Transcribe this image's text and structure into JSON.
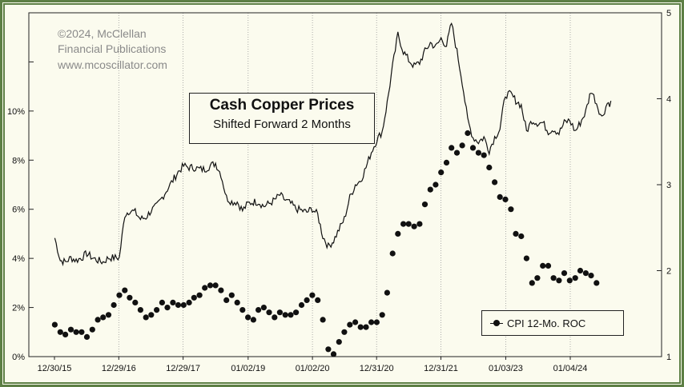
{
  "credit": [
    "©2024, McClellan",
    "Financial Publications",
    "www.mcoscillator.com"
  ],
  "chart_data": {
    "type": "line",
    "title": "Cash Copper Prices",
    "subtitle": "Shifted Forward 2 Months",
    "x_tick_labels": [
      "12/30/15",
      "12/29/16",
      "12/29/17",
      "01/02/19",
      "01/02/20",
      "12/31/20",
      "12/31/21",
      "01/03/23",
      "01/04/24"
    ],
    "x_range": [
      "2015-12-30",
      "2024-11-15"
    ],
    "y_left": {
      "ticks": [
        "0%",
        "2%",
        "4%",
        "6%",
        "8%",
        "10%"
      ],
      "range": [
        0,
        14
      ],
      "unit": "%"
    },
    "y_right": {
      "ticks": [
        "1",
        "2",
        "3",
        "4",
        "5"
      ],
      "range": [
        1,
        5
      ]
    },
    "grid": "vertical dotted at x ticks",
    "legend": {
      "position": "bottom-right",
      "entries": [
        "CPI 12-Mo. ROC"
      ]
    },
    "series": [
      {
        "name": "Cash Copper Prices",
        "axis": "right",
        "style": "thin-line",
        "x": [
          "2016-01-01",
          "2016-02-01",
          "2016-03-01",
          "2016-04-01",
          "2016-05-01",
          "2016-06-01",
          "2016-07-01",
          "2016-08-01",
          "2016-09-01",
          "2016-10-01",
          "2016-11-01",
          "2016-12-01",
          "2017-01-01",
          "2017-02-01",
          "2017-03-01",
          "2017-04-01",
          "2017-05-01",
          "2017-06-01",
          "2017-07-01",
          "2017-08-01",
          "2017-09-01",
          "2017-10-01",
          "2017-11-01",
          "2017-12-01",
          "2018-01-01",
          "2018-02-01",
          "2018-03-01",
          "2018-04-01",
          "2018-05-01",
          "2018-06-01",
          "2018-07-01",
          "2018-08-01",
          "2018-09-01",
          "2018-10-01",
          "2018-11-01",
          "2018-12-01",
          "2019-01-01",
          "2019-02-01",
          "2019-03-01",
          "2019-04-01",
          "2019-05-01",
          "2019-06-01",
          "2019-07-01",
          "2019-08-01",
          "2019-09-01",
          "2019-10-01",
          "2019-11-01",
          "2019-12-01",
          "2020-01-01",
          "2020-02-01",
          "2020-03-01",
          "2020-04-01",
          "2020-05-01",
          "2020-06-01",
          "2020-07-01",
          "2020-08-01",
          "2020-09-01",
          "2020-10-01",
          "2020-11-01",
          "2020-12-01",
          "2021-01-01",
          "2021-02-01",
          "2021-03-01",
          "2021-04-01",
          "2021-05-01",
          "2021-06-01",
          "2021-07-01",
          "2021-08-01",
          "2021-09-01",
          "2021-10-01",
          "2021-11-01",
          "2021-12-01",
          "2022-01-01",
          "2022-02-01",
          "2022-03-01",
          "2022-04-01",
          "2022-05-01",
          "2022-06-01",
          "2022-07-01",
          "2022-08-01",
          "2022-09-01",
          "2022-10-01",
          "2022-11-01",
          "2022-12-01",
          "2023-01-01",
          "2023-02-01",
          "2023-03-01",
          "2023-04-01",
          "2023-05-01",
          "2023-06-01",
          "2023-07-01",
          "2023-08-01",
          "2023-09-01",
          "2023-10-01",
          "2023-11-01",
          "2023-12-01",
          "2024-01-01",
          "2024-02-01",
          "2024-03-01",
          "2024-04-01",
          "2024-05-01",
          "2024-06-01",
          "2024-07-01",
          "2024-08-01"
        ],
        "values": [
          2.38,
          2.12,
          2.1,
          2.15,
          2.12,
          2.15,
          2.2,
          2.15,
          2.12,
          2.1,
          2.15,
          2.15,
          2.15,
          2.65,
          2.7,
          2.68,
          2.6,
          2.62,
          2.7,
          2.75,
          2.85,
          2.95,
          3.05,
          3.15,
          3.22,
          3.2,
          3.2,
          3.18,
          3.18,
          3.22,
          3.25,
          3.12,
          2.85,
          2.8,
          2.8,
          2.7,
          2.78,
          2.8,
          2.8,
          2.75,
          2.78,
          2.82,
          2.88,
          2.82,
          2.78,
          2.72,
          2.7,
          2.68,
          2.72,
          2.65,
          2.4,
          2.28,
          2.35,
          2.48,
          2.6,
          2.85,
          3.0,
          3.05,
          3.2,
          3.38,
          3.52,
          3.62,
          3.95,
          4.38,
          4.75,
          4.55,
          4.45,
          4.38,
          4.42,
          4.55,
          4.65,
          4.6,
          4.7,
          4.62,
          4.88,
          4.55,
          4.2,
          3.75,
          3.55,
          3.5,
          3.55,
          3.4,
          3.55,
          3.65,
          4.05,
          4.05,
          3.98,
          3.92,
          3.62,
          3.75,
          3.72,
          3.72,
          3.62,
          3.65,
          3.6,
          3.72,
          3.75,
          3.62,
          3.72,
          3.85,
          4.1,
          3.95,
          3.78,
          3.95
        ]
      },
      {
        "name": "CPI 12-Mo. ROC",
        "axis": "left",
        "style": "dots",
        "x": [
          "2016-01-01",
          "2016-02-01",
          "2016-03-01",
          "2016-04-01",
          "2016-05-01",
          "2016-06-01",
          "2016-07-01",
          "2016-08-01",
          "2016-09-01",
          "2016-10-01",
          "2016-11-01",
          "2016-12-01",
          "2017-01-01",
          "2017-02-01",
          "2017-03-01",
          "2017-04-01",
          "2017-05-01",
          "2017-06-01",
          "2017-07-01",
          "2017-08-01",
          "2017-09-01",
          "2017-10-01",
          "2017-11-01",
          "2017-12-01",
          "2018-01-01",
          "2018-02-01",
          "2018-03-01",
          "2018-04-01",
          "2018-05-01",
          "2018-06-01",
          "2018-07-01",
          "2018-08-01",
          "2018-09-01",
          "2018-10-01",
          "2018-11-01",
          "2018-12-01",
          "2019-01-01",
          "2019-02-01",
          "2019-03-01",
          "2019-04-01",
          "2019-05-01",
          "2019-06-01",
          "2019-07-01",
          "2019-08-01",
          "2019-09-01",
          "2019-10-01",
          "2019-11-01",
          "2019-12-01",
          "2020-01-01",
          "2020-02-01",
          "2020-03-01",
          "2020-04-01",
          "2020-05-01",
          "2020-06-01",
          "2020-07-01",
          "2020-08-01",
          "2020-09-01",
          "2020-10-01",
          "2020-11-01",
          "2020-12-01",
          "2021-01-01",
          "2021-02-01",
          "2021-03-01",
          "2021-04-01",
          "2021-05-01",
          "2021-06-01",
          "2021-07-01",
          "2021-08-01",
          "2021-09-01",
          "2021-10-01",
          "2021-11-01",
          "2021-12-01",
          "2022-01-01",
          "2022-02-01",
          "2022-03-01",
          "2022-04-01",
          "2022-05-01",
          "2022-06-01",
          "2022-07-01",
          "2022-08-01",
          "2022-09-01",
          "2022-10-01",
          "2022-11-01",
          "2022-12-01",
          "2023-01-01",
          "2023-02-01",
          "2023-03-01",
          "2023-04-01",
          "2023-05-01",
          "2023-06-01",
          "2023-07-01",
          "2023-08-01",
          "2023-09-01",
          "2023-10-01",
          "2023-11-01",
          "2023-12-01",
          "2024-01-01",
          "2024-02-01",
          "2024-03-01",
          "2024-04-01",
          "2024-05-01",
          "2024-06-01"
        ],
        "values": [
          1.3,
          1.0,
          0.9,
          1.1,
          1.0,
          1.0,
          0.8,
          1.1,
          1.5,
          1.6,
          1.7,
          2.1,
          2.5,
          2.7,
          2.4,
          2.2,
          1.9,
          1.6,
          1.7,
          1.9,
          2.2,
          2.0,
          2.2,
          2.1,
          2.1,
          2.2,
          2.4,
          2.5,
          2.8,
          2.9,
          2.9,
          2.7,
          2.3,
          2.5,
          2.2,
          1.9,
          1.6,
          1.5,
          1.9,
          2.0,
          1.8,
          1.6,
          1.8,
          1.7,
          1.7,
          1.8,
          2.1,
          2.3,
          2.5,
          2.3,
          1.5,
          0.3,
          0.1,
          0.6,
          1.0,
          1.3,
          1.4,
          1.2,
          1.2,
          1.4,
          1.4,
          1.7,
          2.6,
          4.2,
          5.0,
          5.4,
          5.4,
          5.3,
          5.4,
          6.2,
          6.8,
          7.0,
          7.5,
          7.9,
          8.5,
          8.3,
          8.6,
          9.1,
          8.5,
          8.3,
          8.2,
          7.7,
          7.1,
          6.5,
          6.4,
          6.0,
          5.0,
          4.9,
          4.0,
          3.0,
          3.2,
          3.7,
          3.7,
          3.2,
          3.1,
          3.4,
          3.1,
          3.2,
          3.5,
          3.4,
          3.3,
          3.0
        ]
      }
    ]
  }
}
